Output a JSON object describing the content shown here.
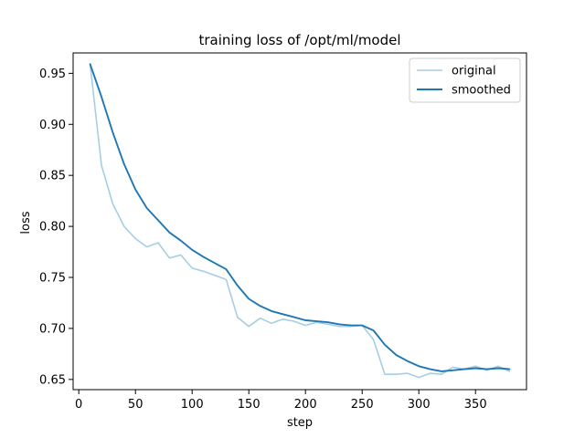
{
  "chart_data": {
    "type": "line",
    "title": "training loss of /opt/ml/model",
    "xlabel": "step",
    "ylabel": "loss",
    "xlim": [
      -5,
      395
    ],
    "ylim": [
      0.64,
      0.97
    ],
    "xticks": [
      0,
      50,
      100,
      150,
      200,
      250,
      300,
      350
    ],
    "yticks": [
      0.65,
      0.7,
      0.75,
      0.8,
      0.85,
      0.9,
      0.95
    ],
    "ytick_labels": [
      "0.65",
      "0.70",
      "0.75",
      "0.80",
      "0.85",
      "0.90",
      "0.95"
    ],
    "legend_position": "top-right",
    "grid": false,
    "x": [
      10,
      20,
      30,
      40,
      50,
      60,
      70,
      80,
      90,
      100,
      110,
      120,
      130,
      140,
      150,
      160,
      170,
      180,
      190,
      200,
      210,
      220,
      230,
      240,
      250,
      260,
      270,
      280,
      290,
      300,
      310,
      320,
      330,
      340,
      350,
      360,
      370,
      380
    ],
    "series": [
      {
        "name": "original",
        "color": "#a6cee3",
        "values": [
          0.959,
          0.86,
          0.822,
          0.8,
          0.788,
          0.78,
          0.784,
          0.769,
          0.772,
          0.759,
          0.756,
          0.752,
          0.748,
          0.711,
          0.702,
          0.71,
          0.705,
          0.709,
          0.707,
          0.703,
          0.706,
          0.704,
          0.702,
          0.702,
          0.703,
          0.689,
          0.655,
          0.655,
          0.656,
          0.652,
          0.656,
          0.655,
          0.662,
          0.66,
          0.663,
          0.659,
          0.663,
          0.658
        ]
      },
      {
        "name": "smoothed",
        "color": "#1f77b4",
        "values": [
          0.959,
          0.927,
          0.892,
          0.861,
          0.836,
          0.818,
          0.806,
          0.794,
          0.786,
          0.777,
          0.77,
          0.764,
          0.758,
          0.742,
          0.729,
          0.722,
          0.717,
          0.714,
          0.711,
          0.708,
          0.707,
          0.706,
          0.704,
          0.703,
          0.703,
          0.698,
          0.684,
          0.674,
          0.668,
          0.663,
          0.66,
          0.658,
          0.659,
          0.66,
          0.661,
          0.66,
          0.661,
          0.66
        ]
      }
    ]
  }
}
